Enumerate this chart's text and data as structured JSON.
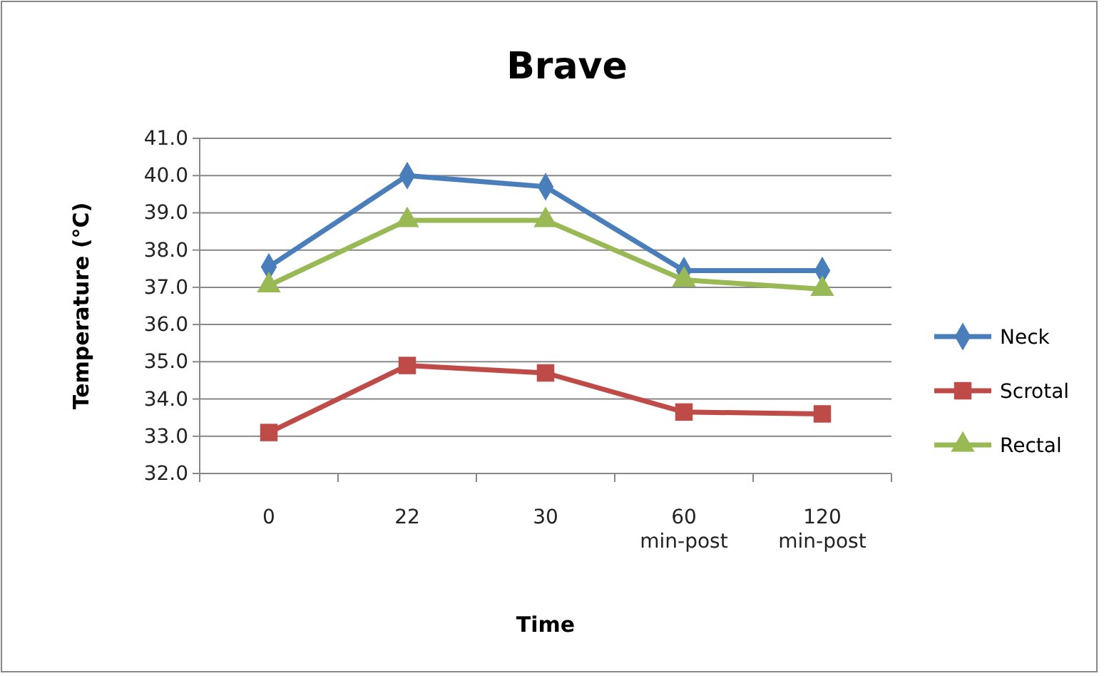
{
  "chart_data": {
    "type": "line",
    "title": "Brave",
    "xlabel": "Time",
    "ylabel": "Temperature (°C)",
    "categories": [
      "0",
      "22",
      "30",
      "60 min-post",
      "120 min-post"
    ],
    "series": [
      {
        "name": "Neck",
        "color": "#4a7ebb",
        "marker": "diamond",
        "values": [
          37.55,
          40.0,
          39.7,
          37.45,
          37.45
        ]
      },
      {
        "name": "Scrotal",
        "color": "#be4b48",
        "marker": "square",
        "values": [
          33.1,
          34.9,
          34.7,
          33.65,
          33.6
        ]
      },
      {
        "name": "Rectal",
        "color": "#98b954",
        "marker": "triangle",
        "values": [
          37.05,
          38.8,
          38.8,
          37.2,
          36.95
        ]
      }
    ],
    "ylim": [
      32,
      41
    ],
    "yticks": [
      {
        "value": 32,
        "label": "32.0"
      },
      {
        "value": 33,
        "label": "33.0"
      },
      {
        "value": 34,
        "label": "34.0"
      },
      {
        "value": 35,
        "label": "35.0"
      },
      {
        "value": 36,
        "label": "36.0"
      },
      {
        "value": 37,
        "label": "37.0"
      },
      {
        "value": 38,
        "label": "38.0"
      },
      {
        "value": 39,
        "label": "39.0"
      },
      {
        "value": 40,
        "label": "40.0"
      },
      {
        "value": 41,
        "label": "41.0"
      }
    ],
    "grid": "y",
    "legend": "right"
  }
}
